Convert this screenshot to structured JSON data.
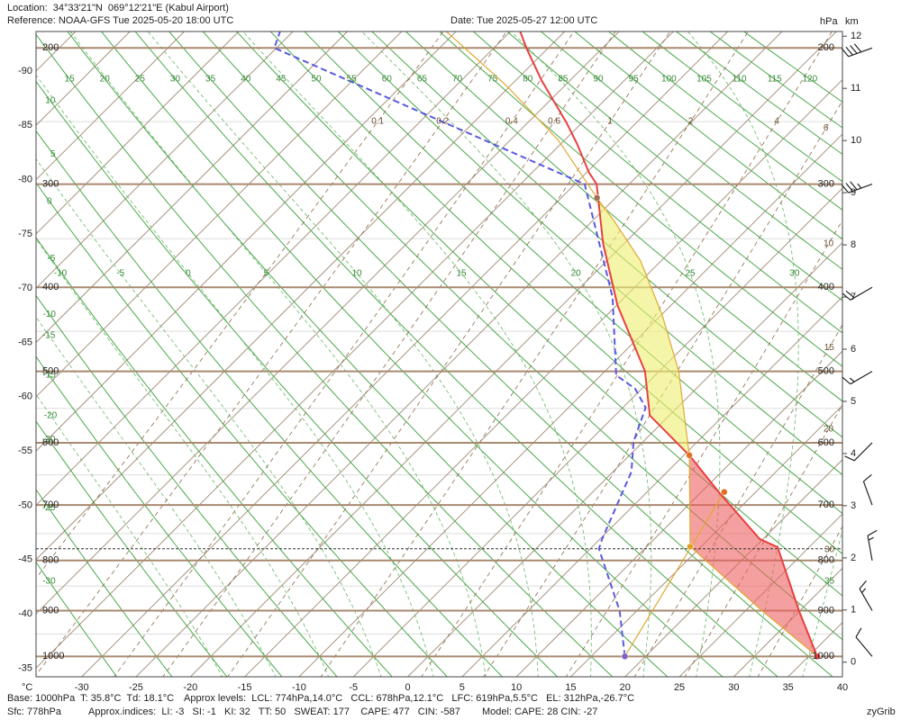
{
  "header": {
    "location": "Location:  34°33'21\"N  069°12'21\"E (Kabul Airport)",
    "reference": "Reference: NOAA-GFS Tue 2025-05-20 18:00 UTC",
    "date": "Date: Tue 2025-05-27 12:00 UTC"
  },
  "chart_data": {
    "type": "skewt",
    "x_unit_label": "°C",
    "p_unit_label": "hPa",
    "z_unit_label": "km",
    "xlim": [
      -34.2,
      40
    ],
    "zlim": [
      -0.28,
      12.09
    ],
    "xticks": [
      -30,
      -25,
      -20,
      -15,
      -10,
      -5,
      0,
      5,
      10,
      15,
      20,
      25,
      30,
      35,
      40
    ],
    "left_ticks": [
      -35,
      -40,
      -45,
      -50,
      -55,
      -60,
      -65,
      -70,
      -75,
      -80,
      -85,
      -90
    ],
    "pressure_levels": [
      200,
      300,
      400,
      500,
      600,
      700,
      800,
      900,
      1000
    ],
    "minor_isobars": [
      250,
      350,
      450,
      550,
      650,
      750,
      850,
      950
    ],
    "zticks": [
      0,
      1,
      2,
      3,
      4,
      5,
      6,
      7,
      8,
      9,
      10,
      11,
      12
    ],
    "dry_adiabats": [
      -30,
      -25,
      -20,
      -15,
      -10,
      -5,
      0,
      5,
      10,
      15,
      20,
      25,
      30,
      35,
      40,
      45,
      50,
      55,
      60,
      65,
      70,
      75,
      80,
      85,
      90,
      95,
      100,
      105,
      110,
      115,
      120
    ],
    "moist_adiabats": [
      -20,
      -15,
      -10,
      -5,
      0,
      5,
      10,
      15,
      20,
      25,
      30,
      35
    ],
    "mixing_ratios": [
      0.1,
      0.2,
      0.4,
      0.6,
      1,
      2,
      4,
      6,
      10,
      15,
      20,
      30
    ],
    "temperature": {
      "color": "#e84040",
      "p": [
        1000,
        900,
        775,
        760,
        680,
        620,
        560,
        500,
        420,
        355,
        300,
        290,
        267,
        251,
        221,
        201,
        190
      ],
      "t": [
        35.8,
        29.9,
        22.1,
        19.7,
        11.8,
        5.6,
        -1.8,
        -6.3,
        -14.9,
        -21.9,
        -28.0,
        -29.8,
        -33.5,
        -36.4,
        -42.6,
        -46.8,
        -49.1
      ]
    },
    "dewpoint": {
      "color": "#5a5ae0",
      "p": [
        1000,
        900,
        778,
        760,
        645,
        598,
        549,
        523,
        505,
        411,
        300,
        200,
        190
      ],
      "t": [
        18.1,
        13.4,
        5.8,
        5.2,
        1.7,
        -0.9,
        -2.9,
        -5.6,
        -8.6,
        -16.1,
        -29.1,
        -70.2,
        -71.2
      ]
    },
    "parcel": {
      "color": "#e0a830",
      "p": [
        1000,
        900,
        774,
        619,
        500,
        431,
        372,
        333,
        312,
        264,
        224,
        190
      ],
      "t": [
        35.8,
        26.5,
        14.0,
        5.5,
        -3.2,
        -9.9,
        -16.9,
        -23.0,
        -26.7,
        -35.6,
        -45.5,
        -55.9
      ]
    },
    "mixing_line": {
      "color": "#e0a830",
      "p": [
        1000,
        678
      ],
      "t": [
        18.1,
        12.1
      ]
    },
    "surface_p": 778,
    "levels": {
      "base_t": {
        "p": 1000,
        "t": 35.8,
        "color": "#e84040"
      },
      "base_td": {
        "p": 1000,
        "t": 18.1,
        "color": "#8060c0"
      },
      "lcl": {
        "p": 774,
        "t": 14.0,
        "color": "#e0a020"
      },
      "ccl": {
        "p": 678,
        "t": 12.1,
        "color": "#e07020"
      },
      "lfc": {
        "p": 619,
        "t": 5.5,
        "color": "#e07020"
      },
      "el": {
        "p": 312,
        "t": -26.7,
        "color": "#a07050"
      }
    },
    "wind": {
      "p": [
        200,
        300,
        400,
        500,
        600,
        700,
        800,
        900,
        1000
      ],
      "dir": [
        250,
        250,
        240,
        240,
        225,
        340,
        350,
        330,
        320
      ],
      "speed": [
        40,
        35,
        20,
        15,
        10,
        10,
        15,
        15,
        10
      ]
    }
  },
  "footer": {
    "base": "Base: 1000hPa  T: 35.8°C  Td: 18.1°C",
    "levels": "Approx levels:  LCL: 774hPa,14.0°C   CCL: 678hPa,12.1°C   LFC: 619hPa,5.5°C   EL: 312hPa,-26.7°C",
    "sfc": "Sfc: 778hPa",
    "indices": "Approx.indices:  LI: -3   SI: -1   KI: 32   TT: 50   SWEAT: 177    CAPE: 477   CIN: -587",
    "model": "Model: CAPE: 28 CIN: -27",
    "brand": "zyGrib"
  }
}
